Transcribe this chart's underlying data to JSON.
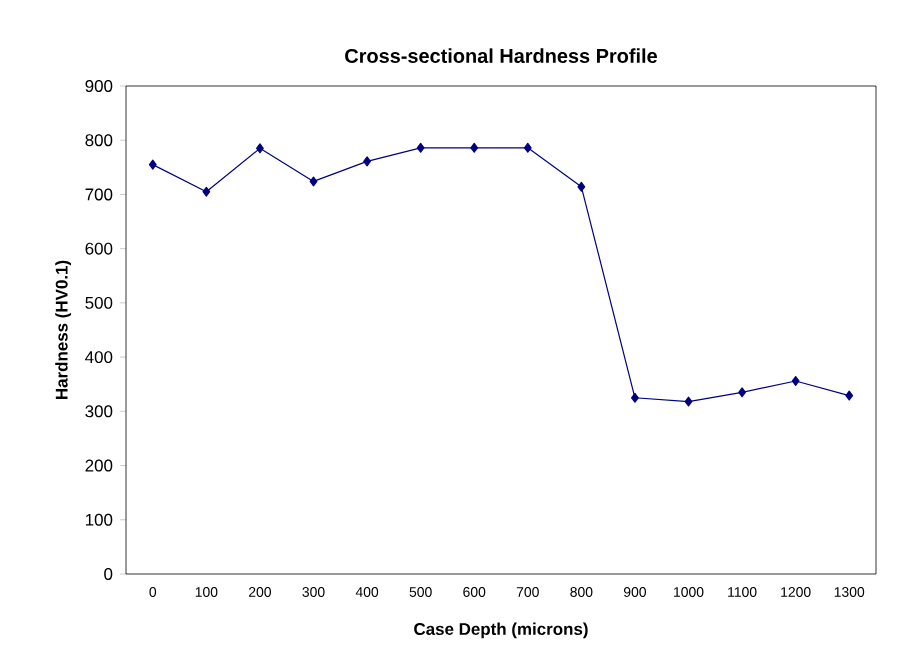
{
  "chart_data": {
    "type": "line",
    "title": "Cross-sectional Hardness Profile",
    "xlabel": "Case Depth (microns)",
    "ylabel": "Hardness (HV0.1)",
    "categories": [
      "0",
      "100",
      "200",
      "300",
      "400",
      "500",
      "600",
      "700",
      "800",
      "900",
      "1000",
      "1100",
      "1200",
      "1300"
    ],
    "series": [
      {
        "color": "#000080",
        "values": [
          755,
          705,
          785,
          724,
          761,
          786,
          786,
          786,
          714,
          325,
          318,
          335,
          356,
          329
        ]
      }
    ],
    "ylim": [
      0,
      900
    ],
    "yticks": [
      0,
      100,
      200,
      300,
      400,
      500,
      600,
      700,
      800,
      900
    ],
    "marker": "diamond",
    "line_style": "solid"
  }
}
